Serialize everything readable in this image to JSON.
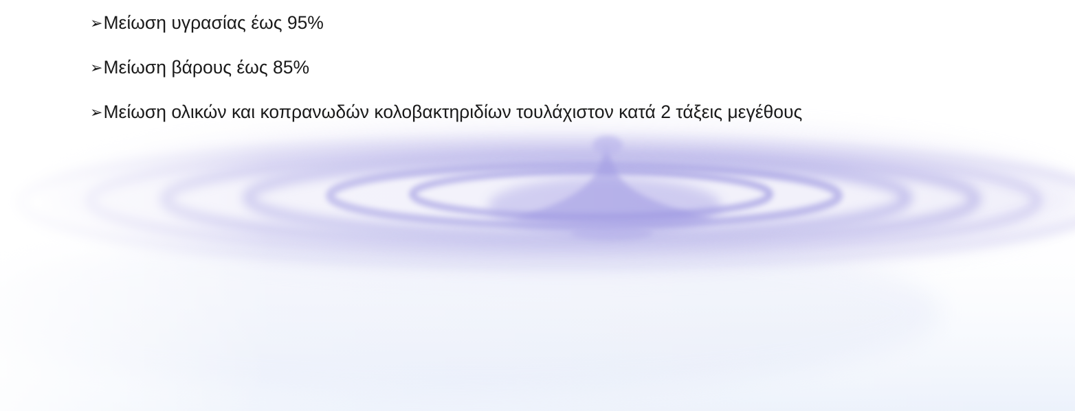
{
  "slide": {
    "bullets": [
      {
        "marker": "➢",
        "text": "Μείωση υγρασίας έως 95%"
      },
      {
        "marker": "➢",
        "text": "Μείωση βάρους έως 85%"
      },
      {
        "marker": "➢",
        "text": "Μείωση ολικών και κοπρανωδών κολοβακτηριδίων τουλάχιστον κατά 2 τάξεις μεγέθους"
      }
    ]
  },
  "theme": {
    "text_color": "#1a1a1a",
    "ripple_color": "#8c86dc",
    "background_color": "#ffffff"
  },
  "background": {
    "icon": "water-drop-ripple-background"
  }
}
